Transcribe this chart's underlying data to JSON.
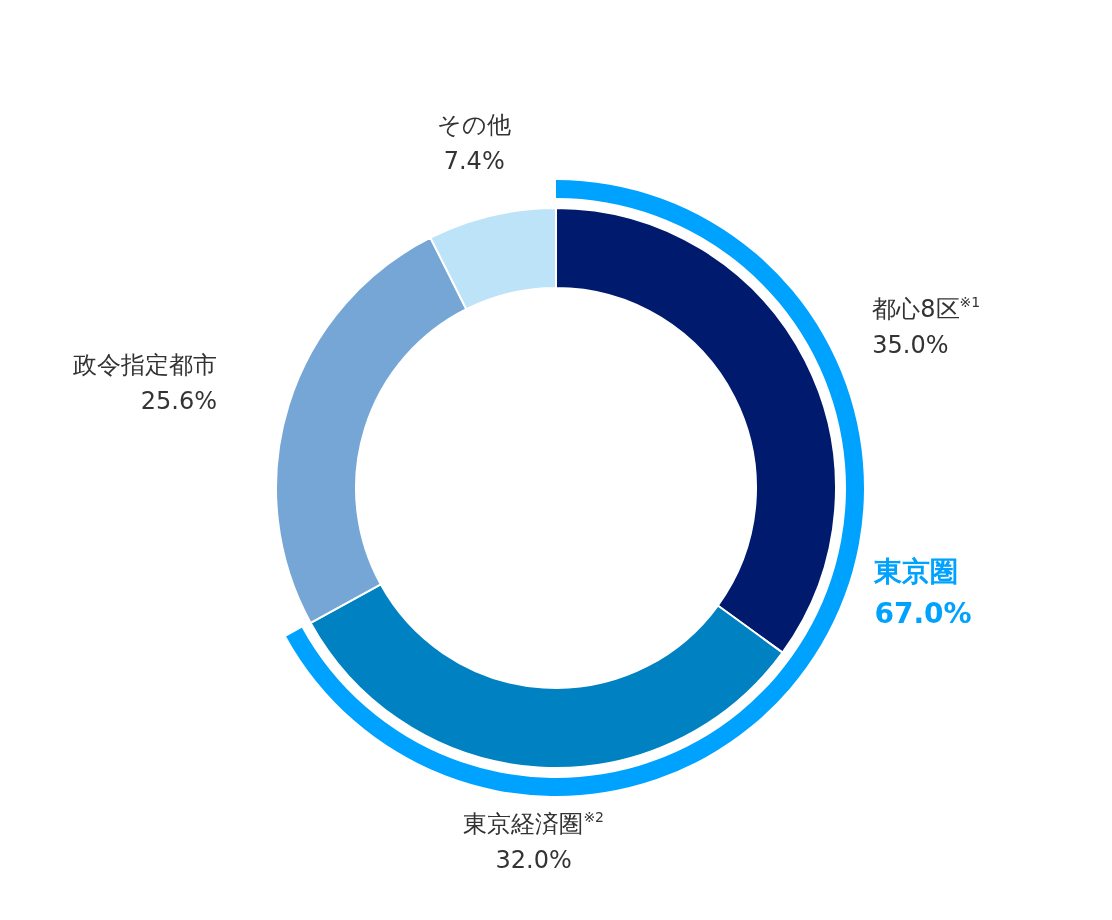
{
  "chart_data": {
    "type": "donut",
    "categories": [
      "都心8区$^{※1}$",
      "東京経済圏$^{※2}$",
      "政令指定都市",
      "その他"
    ],
    "series": [
      {
        "values": [
          35.0,
          32.0,
          25.6,
          7.4
        ],
        "value_labels": [
          "35.0%",
          "32.0%",
          "25.6%",
          "7.4%"
        ],
        "colors": [
          "#001a6e",
          "#0081c2",
          "#75a6d6",
          "#bde3f8"
        ]
      },
      {
        "name": "東京圏",
        "values": [
          67.0,
          null,
          null,
          null
        ],
        "value_labels": [
          "67.0%",
          null,
          null,
          null
        ],
        "color": "#00a2ff"
      }
    ]
  }
}
